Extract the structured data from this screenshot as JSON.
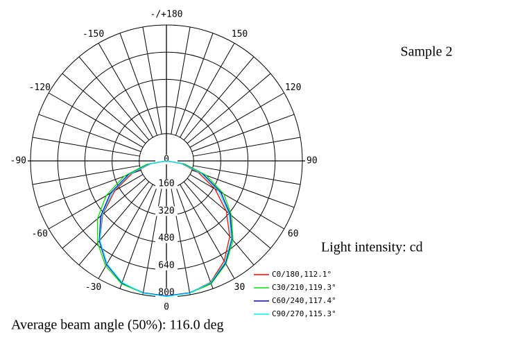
{
  "chart_data": {
    "type": "polar",
    "title": "Sample 2",
    "annotations": [
      "Light intensity: cd",
      "Average beam angle (50%): 116.0 deg"
    ],
    "x": [
      -90,
      -80,
      -70,
      -60,
      -50,
      -40,
      -30,
      -20,
      -10,
      0,
      10,
      20,
      30,
      40,
      50,
      60,
      70,
      80,
      90
    ],
    "series": [
      {
        "name": "C0/180,112.1°",
        "color": "#ff0000",
        "values": [
          0,
          95,
          215,
          350,
          490,
          610,
          700,
          765,
          790,
          796,
          790,
          760,
          680,
          580,
          460,
          330,
          200,
          90,
          0
        ]
      },
      {
        "name": "C30/210,119.3°",
        "color": "#00e000",
        "values": [
          0,
          120,
          265,
          410,
          530,
          630,
          715,
          770,
          790,
          795,
          790,
          770,
          700,
          610,
          500,
          390,
          250,
          110,
          0
        ]
      },
      {
        "name": "C60/240,117.4°",
        "color": "#0000c8",
        "values": [
          0,
          105,
          240,
          380,
          505,
          615,
          705,
          765,
          788,
          795,
          788,
          765,
          695,
          600,
          490,
          370,
          230,
          100,
          0
        ]
      },
      {
        "name": "C90/270,115.3°",
        "color": "#00f0f0",
        "values": [
          0,
          100,
          230,
          365,
          495,
          610,
          700,
          762,
          790,
          798,
          790,
          762,
          690,
          595,
          480,
          355,
          220,
          95,
          0
        ]
      }
    ],
    "rlim": [
      0,
      800
    ],
    "rticks": [
      0,
      160,
      320,
      480,
      640,
      800
    ],
    "xticks": [
      0,
      30,
      60,
      90,
      120,
      150,
      {
        "value": 180,
        "label": "-/+180"
      },
      -150,
      -120,
      -90,
      -60,
      -30
    ],
    "theta_grid": [
      -170,
      -160,
      -150,
      -140,
      -130,
      -120,
      -110,
      -100,
      -90,
      -80,
      -70,
      -60,
      -50,
      -40,
      -30,
      -20,
      -10,
      0,
      10,
      20,
      30,
      40,
      50,
      60,
      70,
      80,
      90,
      100,
      110,
      120,
      130,
      140,
      150,
      160,
      170,
      180
    ]
  }
}
